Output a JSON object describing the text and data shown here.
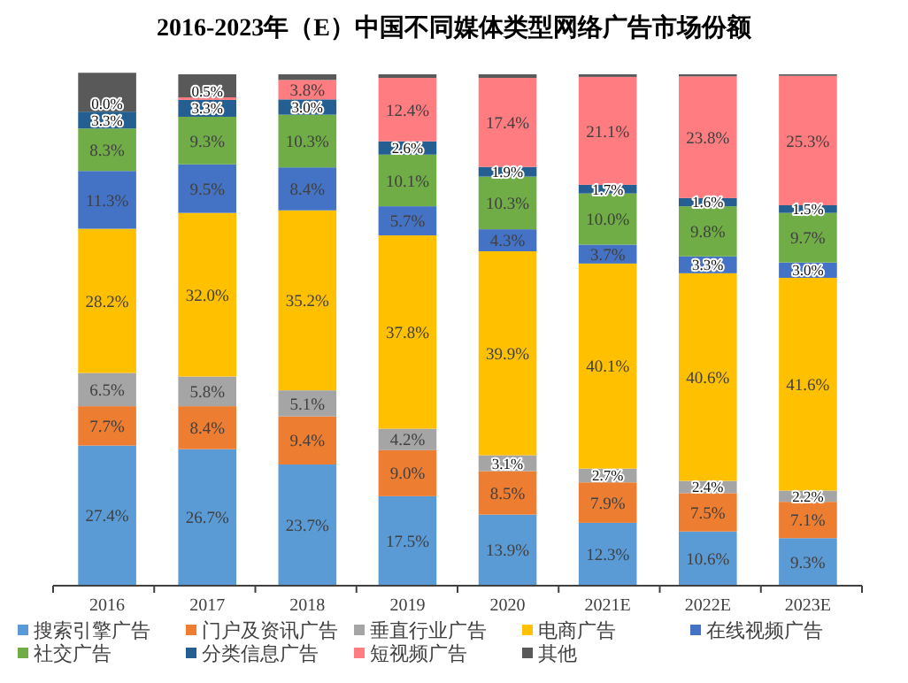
{
  "chart_data": {
    "type": "bar",
    "title": "2016-2023年（E）中国不同媒体类型网络广告市场份额",
    "categories": [
      "2016",
      "2017",
      "2018",
      "2019",
      "2020",
      "2021E",
      "2022E",
      "2023E"
    ],
    "stacked": true,
    "ylim": [
      0,
      100
    ],
    "tick_labels": "x",
    "legend": "bottom",
    "series": [
      {
        "name": "搜索引擎广告",
        "color": "#5b9bd5",
        "values": [
          27.4,
          26.7,
          23.7,
          17.5,
          13.9,
          12.3,
          10.6,
          9.3
        ],
        "value_labels": [
          "27.4%",
          "26.7%",
          "23.7%",
          "17.5%",
          "13.9%",
          "12.3%",
          "10.6%",
          "9.3%"
        ]
      },
      {
        "name": "门户及资讯广告",
        "color": "#ed7d31",
        "values": [
          7.7,
          8.4,
          9.4,
          9.0,
          8.5,
          7.9,
          7.5,
          7.1
        ],
        "value_labels": [
          "7.7%",
          "8.4%",
          "9.4%",
          "9.0%",
          "8.5%",
          "7.9%",
          "7.5%",
          "7.1%"
        ]
      },
      {
        "name": "垂直行业广告",
        "color": "#a5a5a5",
        "values": [
          6.5,
          5.8,
          5.1,
          4.2,
          3.1,
          2.7,
          2.4,
          2.2
        ],
        "value_labels": [
          "6.5%",
          "5.8%",
          "5.1%",
          "4.2%",
          "3.1%",
          "2.7%",
          "2.4%",
          "2.2%"
        ]
      },
      {
        "name": "电商广告",
        "color": "#ffc000",
        "values": [
          28.2,
          32.0,
          35.2,
          37.8,
          39.9,
          40.1,
          40.6,
          41.6
        ],
        "value_labels": [
          "28.2%",
          "32.0%",
          "35.2%",
          "37.8%",
          "39.9%",
          "40.1%",
          "40.6%",
          "41.6%"
        ]
      },
      {
        "name": "在线视频广告",
        "color": "#4472c4",
        "values": [
          11.3,
          9.5,
          8.4,
          5.7,
          4.3,
          3.7,
          3.3,
          3.0
        ],
        "value_labels": [
          "11.3%",
          "9.5%",
          "8.4%",
          "5.7%",
          "4.3%",
          "3.7%",
          "3.3%",
          "3.0%"
        ]
      },
      {
        "name": "社交广告",
        "color": "#70ad47",
        "values": [
          8.3,
          9.3,
          10.3,
          10.1,
          10.3,
          10.0,
          9.8,
          9.7
        ],
        "value_labels": [
          "8.3%",
          "9.3%",
          "10.3%",
          "10.1%",
          "10.3%",
          "10.0%",
          "9.8%",
          "9.7%"
        ]
      },
      {
        "name": "分类信息广告",
        "color": "#255e91",
        "values": [
          3.3,
          3.3,
          3.0,
          2.6,
          1.9,
          1.7,
          1.6,
          1.5
        ],
        "value_labels": [
          "3.3%",
          "3.3%",
          "3.0%",
          "2.6%",
          "1.9%",
          "1.7%",
          "1.6%",
          "1.5%"
        ]
      },
      {
        "name": "短视频广告",
        "color": "#ff7c80",
        "values": [
          0.0,
          0.5,
          3.8,
          12.4,
          17.4,
          21.1,
          23.8,
          25.3
        ],
        "value_labels": [
          "0.0%",
          "0.5%",
          "3.8%",
          "12.4%",
          "17.4%",
          "21.1%",
          "23.8%",
          "25.3%"
        ]
      },
      {
        "name": "其他",
        "color": "#595959",
        "values": [
          7.6,
          4.5,
          1.1,
          0.7,
          0.7,
          0.5,
          0.4,
          0.3
        ]
      }
    ]
  }
}
